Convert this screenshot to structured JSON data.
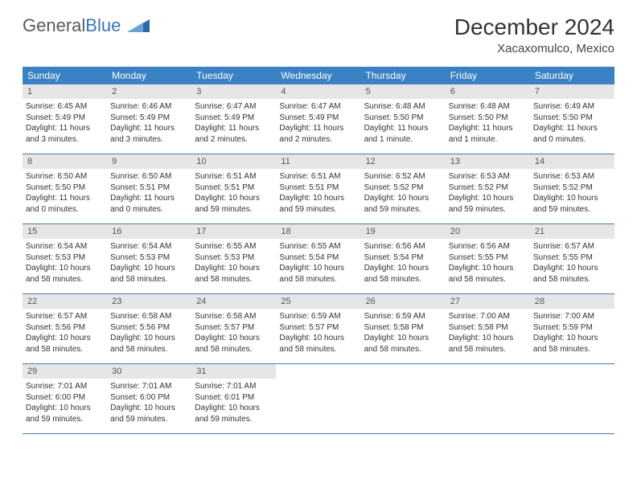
{
  "logo": {
    "text_left": "General",
    "text_right": "Blue"
  },
  "title": "December 2024",
  "location": "Xacaxomulco, Mexico",
  "colors": {
    "header_bg": "#3b82c4",
    "daynum_bg": "#e6e6e6",
    "week_border": "#4a7aa8",
    "logo_gray": "#5a5a5a",
    "logo_blue": "#3b75b3"
  },
  "weekdays": [
    "Sunday",
    "Monday",
    "Tuesday",
    "Wednesday",
    "Thursday",
    "Friday",
    "Saturday"
  ],
  "weeks": [
    [
      {
        "n": "1",
        "sr": "6:45 AM",
        "ss": "5:49 PM",
        "dl": "11 hours and 3 minutes."
      },
      {
        "n": "2",
        "sr": "6:46 AM",
        "ss": "5:49 PM",
        "dl": "11 hours and 3 minutes."
      },
      {
        "n": "3",
        "sr": "6:47 AM",
        "ss": "5:49 PM",
        "dl": "11 hours and 2 minutes."
      },
      {
        "n": "4",
        "sr": "6:47 AM",
        "ss": "5:49 PM",
        "dl": "11 hours and 2 minutes."
      },
      {
        "n": "5",
        "sr": "6:48 AM",
        "ss": "5:50 PM",
        "dl": "11 hours and 1 minute."
      },
      {
        "n": "6",
        "sr": "6:48 AM",
        "ss": "5:50 PM",
        "dl": "11 hours and 1 minute."
      },
      {
        "n": "7",
        "sr": "6:49 AM",
        "ss": "5:50 PM",
        "dl": "11 hours and 0 minutes."
      }
    ],
    [
      {
        "n": "8",
        "sr": "6:50 AM",
        "ss": "5:50 PM",
        "dl": "11 hours and 0 minutes."
      },
      {
        "n": "9",
        "sr": "6:50 AM",
        "ss": "5:51 PM",
        "dl": "11 hours and 0 minutes."
      },
      {
        "n": "10",
        "sr": "6:51 AM",
        "ss": "5:51 PM",
        "dl": "10 hours and 59 minutes."
      },
      {
        "n": "11",
        "sr": "6:51 AM",
        "ss": "5:51 PM",
        "dl": "10 hours and 59 minutes."
      },
      {
        "n": "12",
        "sr": "6:52 AM",
        "ss": "5:52 PM",
        "dl": "10 hours and 59 minutes."
      },
      {
        "n": "13",
        "sr": "6:53 AM",
        "ss": "5:52 PM",
        "dl": "10 hours and 59 minutes."
      },
      {
        "n": "14",
        "sr": "6:53 AM",
        "ss": "5:52 PM",
        "dl": "10 hours and 59 minutes."
      }
    ],
    [
      {
        "n": "15",
        "sr": "6:54 AM",
        "ss": "5:53 PM",
        "dl": "10 hours and 58 minutes."
      },
      {
        "n": "16",
        "sr": "6:54 AM",
        "ss": "5:53 PM",
        "dl": "10 hours and 58 minutes."
      },
      {
        "n": "17",
        "sr": "6:55 AM",
        "ss": "5:53 PM",
        "dl": "10 hours and 58 minutes."
      },
      {
        "n": "18",
        "sr": "6:55 AM",
        "ss": "5:54 PM",
        "dl": "10 hours and 58 minutes."
      },
      {
        "n": "19",
        "sr": "6:56 AM",
        "ss": "5:54 PM",
        "dl": "10 hours and 58 minutes."
      },
      {
        "n": "20",
        "sr": "6:56 AM",
        "ss": "5:55 PM",
        "dl": "10 hours and 58 minutes."
      },
      {
        "n": "21",
        "sr": "6:57 AM",
        "ss": "5:55 PM",
        "dl": "10 hours and 58 minutes."
      }
    ],
    [
      {
        "n": "22",
        "sr": "6:57 AM",
        "ss": "5:56 PM",
        "dl": "10 hours and 58 minutes."
      },
      {
        "n": "23",
        "sr": "6:58 AM",
        "ss": "5:56 PM",
        "dl": "10 hours and 58 minutes."
      },
      {
        "n": "24",
        "sr": "6:58 AM",
        "ss": "5:57 PM",
        "dl": "10 hours and 58 minutes."
      },
      {
        "n": "25",
        "sr": "6:59 AM",
        "ss": "5:57 PM",
        "dl": "10 hours and 58 minutes."
      },
      {
        "n": "26",
        "sr": "6:59 AM",
        "ss": "5:58 PM",
        "dl": "10 hours and 58 minutes."
      },
      {
        "n": "27",
        "sr": "7:00 AM",
        "ss": "5:58 PM",
        "dl": "10 hours and 58 minutes."
      },
      {
        "n": "28",
        "sr": "7:00 AM",
        "ss": "5:59 PM",
        "dl": "10 hours and 58 minutes."
      }
    ],
    [
      {
        "n": "29",
        "sr": "7:01 AM",
        "ss": "6:00 PM",
        "dl": "10 hours and 59 minutes."
      },
      {
        "n": "30",
        "sr": "7:01 AM",
        "ss": "6:00 PM",
        "dl": "10 hours and 59 minutes."
      },
      {
        "n": "31",
        "sr": "7:01 AM",
        "ss": "6:01 PM",
        "dl": "10 hours and 59 minutes."
      },
      null,
      null,
      null,
      null
    ]
  ],
  "labels": {
    "sunrise": "Sunrise:",
    "sunset": "Sunset:",
    "daylight": "Daylight:"
  }
}
